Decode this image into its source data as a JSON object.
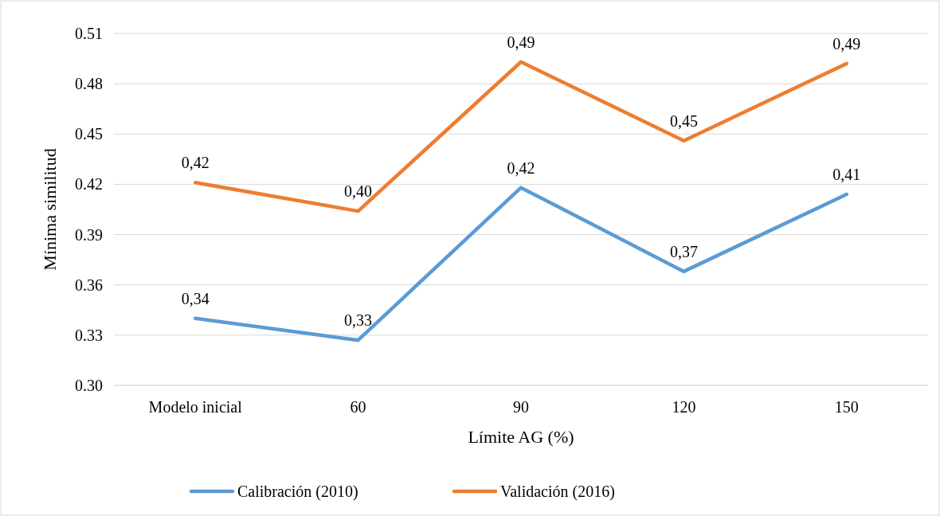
{
  "chart_data": {
    "type": "line",
    "xlabel": "Límite AG (%)",
    "ylabel": "Mínima similitud",
    "categories": [
      "Modelo inicial",
      "60",
      "90",
      "120",
      "150"
    ],
    "series": [
      {
        "name": "Calibración (2010)",
        "color": "#5b9bd5",
        "values": [
          0.34,
          0.327,
          0.418,
          0.368,
          0.414
        ],
        "value_labels": [
          "0,34",
          "0,33",
          "0,42",
          "0,37",
          "0,41"
        ]
      },
      {
        "name": "Validación (2016)",
        "color": "#ed7d31",
        "values": [
          0.421,
          0.404,
          0.493,
          0.446,
          0.492
        ],
        "value_labels": [
          "0,42",
          "0,40",
          "0,49",
          "0,45",
          "0,49"
        ]
      }
    ],
    "ylim": [
      0.3,
      0.51
    ],
    "yticks": [
      {
        "value": 0.3,
        "label": "0.30"
      },
      {
        "value": 0.33,
        "label": "0.33"
      },
      {
        "value": 0.36,
        "label": "0.36"
      },
      {
        "value": 0.39,
        "label": "0.39"
      },
      {
        "value": 0.42,
        "label": "0.42"
      },
      {
        "value": 0.45,
        "label": "0.45"
      },
      {
        "value": 0.48,
        "label": "0.48"
      },
      {
        "value": 0.51,
        "label": "0.51"
      }
    ],
    "grid": "y",
    "legend": "bottom",
    "marker": "none",
    "line_style": "solid"
  }
}
